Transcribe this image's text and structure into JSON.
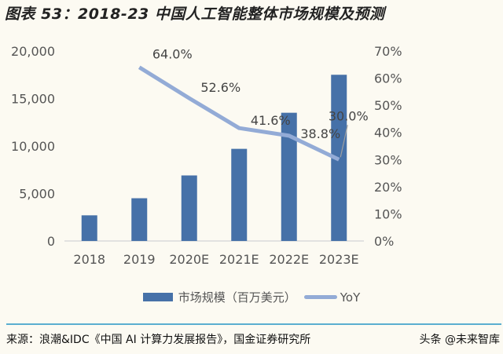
{
  "title": "图表 53：2018-23 中国人工智能整体市场规模及预测",
  "chart_data": {
    "type": "bar+line",
    "categories": [
      "2018",
      "2019",
      "2020E",
      "2021E",
      "2022E",
      "2023E"
    ],
    "series": [
      {
        "name": "市场规模（百万美元）",
        "type": "bar",
        "axis": "left",
        "values": [
          2700,
          4500,
          6900,
          9700,
          13500,
          17500
        ],
        "color": "#4671a8"
      },
      {
        "name": "YoY",
        "type": "line",
        "axis": "right",
        "values": [
          null,
          64.0,
          52.6,
          41.6,
          38.8,
          30.0
        ],
        "labels": [
          "",
          "64.0%",
          "52.6%",
          "41.6%",
          "38.8%",
          "30.0%"
        ],
        "color": "#93abd6"
      }
    ],
    "y_left": {
      "range": [
        0,
        20000
      ],
      "ticks": [
        "0",
        "5,000",
        "10,000",
        "15,000",
        "20,000"
      ]
    },
    "y_right": {
      "range": [
        0,
        70
      ],
      "ticks": [
        "0%",
        "10%",
        "20%",
        "30%",
        "40%",
        "50%",
        "60%",
        "70%"
      ]
    },
    "grid": false,
    "legend_placement": "bottom"
  },
  "legend": {
    "bar_label": "市场规模（百万美元）",
    "line_label": "YoY"
  },
  "source": "来源：浪潮&IDC《中国 AI 计算力发展报告》，国金证券研究所",
  "watermark": "头条 @未来智库"
}
